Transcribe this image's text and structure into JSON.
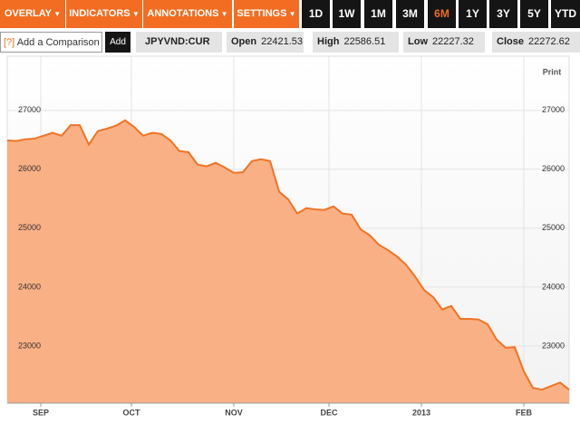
{
  "toolbar": {
    "menus": [
      "OVERLAY",
      "INDICATORS",
      "ANNOTATIONS",
      "SETTINGS"
    ],
    "ranges": [
      "1D",
      "1W",
      "1M",
      "3M",
      "6M",
      "1Y",
      "3Y",
      "5Y",
      "YTD"
    ],
    "active_range": "6M"
  },
  "comparison": {
    "help": "[?]",
    "placeholder": "Add a Comparison",
    "button": "Add"
  },
  "symbol": "JPYVND:CUR",
  "quotes": [
    {
      "label": "Open",
      "value": 22421.53
    },
    {
      "label": "High",
      "value": 22586.51
    },
    {
      "label": "Low",
      "value": 22227.32
    },
    {
      "label": "Close",
      "value": 22272.62
    }
  ],
  "print": "Print",
  "chart_data": {
    "type": "area",
    "color": "#f07323",
    "fill": "#f9b085",
    "grid": true,
    "values": [
      26490,
      26480,
      26510,
      26520,
      26570,
      26620,
      26570,
      26750,
      26750,
      26420,
      26650,
      26690,
      26740,
      26830,
      26720,
      26570,
      26620,
      26600,
      26490,
      26310,
      26290,
      26080,
      26050,
      26110,
      26030,
      25940,
      25950,
      26140,
      26170,
      26140,
      25620,
      25490,
      25250,
      25340,
      25320,
      25310,
      25370,
      25250,
      25230,
      24980,
      24880,
      24720,
      24630,
      24520,
      24380,
      24180,
      23950,
      23830,
      23620,
      23680,
      23460,
      23460,
      23450,
      23370,
      23110,
      22970,
      22980,
      22570,
      22290,
      22260,
      22320,
      22380,
      22260
    ],
    "xlim": [
      0,
      62
    ],
    "xticks": [
      {
        "value": 3.7,
        "label": "SEP"
      },
      {
        "value": 13.7,
        "label": "OCT"
      },
      {
        "value": 25,
        "label": "NOV"
      },
      {
        "value": 35.5,
        "label": "DEC"
      },
      {
        "value": 45.7,
        "label": "2013"
      },
      {
        "value": 57,
        "label": "FEB"
      }
    ],
    "ylim": [
      22030,
      27920
    ],
    "yticks": [
      23000,
      24000,
      25000,
      26000,
      27000
    ]
  }
}
